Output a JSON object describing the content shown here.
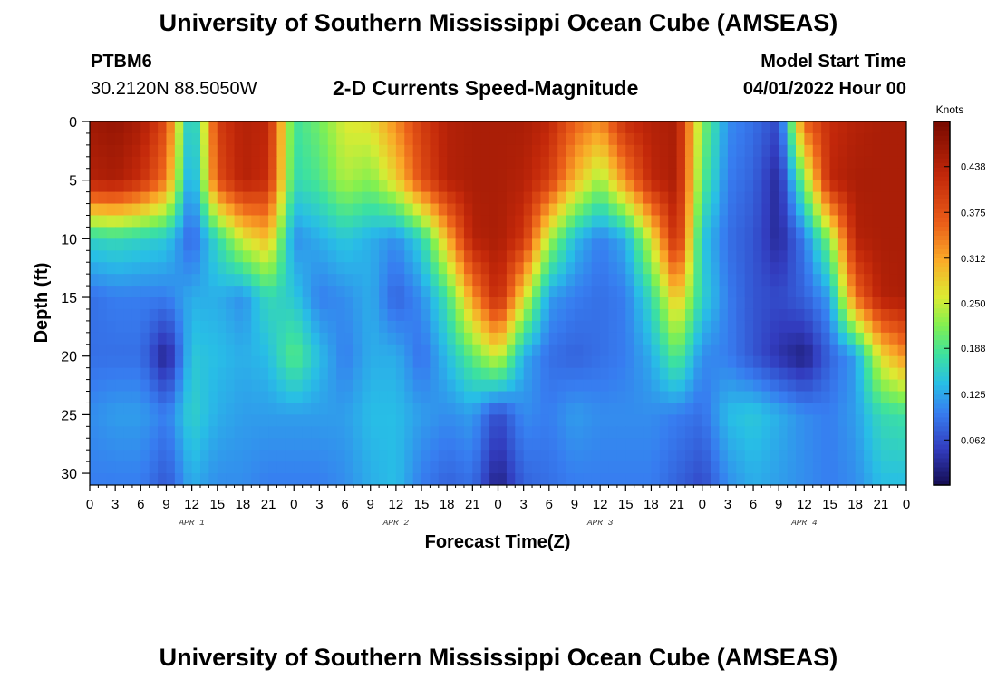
{
  "header": {
    "title": "University of Southern Mississippi Ocean Cube (AMSEAS)",
    "station": "PTBM6",
    "coordinates": "30.2120N  88.5050W",
    "plot_title": "2-D Currents Speed-Magnitude",
    "model_start_label": "Model Start Time",
    "model_start_value": "04/01/2022 Hour 00"
  },
  "footer": {
    "title": "University of Southern Mississippi Ocean Cube (AMSEAS)"
  },
  "chart_data": {
    "type": "heatmap",
    "title": "2-D Currents Speed-Magnitude",
    "xlabel": "Forecast Time(Z)",
    "ylabel": "Depth (ft)",
    "x_range_hours": [
      0,
      96
    ],
    "y_range_ft": [
      0,
      31
    ],
    "x_tick_labels": [
      "0",
      "3",
      "6",
      "9",
      "12",
      "15",
      "18",
      "21",
      "0",
      "3",
      "6",
      "9",
      "12",
      "15",
      "18",
      "21",
      "0",
      "3",
      "6",
      "9",
      "12",
      "15",
      "18",
      "21",
      "0",
      "3",
      "6",
      "9",
      "12",
      "15",
      "18",
      "21",
      "0"
    ],
    "y_ticks": [
      0,
      5,
      10,
      15,
      20,
      25,
      30
    ],
    "y_tick_labels": [
      "0",
      "5",
      "10",
      "15",
      "20",
      "25",
      "30"
    ],
    "day_labels": [
      {
        "label": "APR 1",
        "hour": 12
      },
      {
        "label": "APR 2",
        "hour": 36
      },
      {
        "label": "APR 3",
        "hour": 60
      },
      {
        "label": "APR 4",
        "hour": 84
      }
    ],
    "colorbar": {
      "unit": "Knots",
      "min": 0.0,
      "max": 0.5,
      "tick_values": [
        0.438,
        0.375,
        0.312,
        0.25,
        0.188,
        0.125,
        0.062
      ],
      "tick_labels": [
        "0.438",
        "0.375",
        "0.312",
        "0.250",
        "0.188",
        "0.125",
        "0.062"
      ]
    },
    "depths_ft": [
      0,
      5,
      10,
      15,
      20,
      25,
      31
    ],
    "hours": [
      0,
      3,
      6,
      9,
      12,
      15,
      18,
      21,
      24,
      27,
      30,
      33,
      36,
      39,
      42,
      45,
      48,
      51,
      54,
      57,
      60,
      63,
      66,
      69,
      72,
      75,
      78,
      81,
      84,
      87,
      90,
      93,
      96
    ],
    "speed_knots": [
      [
        0.46,
        0.47,
        0.45,
        0.38,
        0.12,
        0.4,
        0.44,
        0.43,
        0.18,
        0.21,
        0.26,
        0.27,
        0.33,
        0.4,
        0.44,
        0.45,
        0.45,
        0.45,
        0.43,
        0.36,
        0.33,
        0.42,
        0.44,
        0.45,
        0.22,
        0.11,
        0.09,
        0.06,
        0.36,
        0.42,
        0.44,
        0.45,
        0.45
      ],
      [
        0.44,
        0.45,
        0.42,
        0.34,
        0.1,
        0.38,
        0.44,
        0.42,
        0.17,
        0.19,
        0.24,
        0.22,
        0.28,
        0.38,
        0.44,
        0.45,
        0.45,
        0.44,
        0.4,
        0.3,
        0.23,
        0.33,
        0.43,
        0.45,
        0.2,
        0.1,
        0.08,
        0.03,
        0.22,
        0.43,
        0.45,
        0.45,
        0.45
      ],
      [
        0.16,
        0.17,
        0.16,
        0.15,
        0.08,
        0.17,
        0.26,
        0.3,
        0.11,
        0.13,
        0.15,
        0.13,
        0.11,
        0.16,
        0.3,
        0.44,
        0.45,
        0.41,
        0.24,
        0.14,
        0.1,
        0.13,
        0.26,
        0.43,
        0.15,
        0.09,
        0.07,
        0.03,
        0.1,
        0.22,
        0.44,
        0.45,
        0.45
      ],
      [
        0.09,
        0.1,
        0.1,
        0.1,
        0.13,
        0.13,
        0.11,
        0.17,
        0.15,
        0.1,
        0.11,
        0.13,
        0.08,
        0.11,
        0.18,
        0.32,
        0.43,
        0.27,
        0.12,
        0.1,
        0.09,
        0.1,
        0.17,
        0.3,
        0.16,
        0.1,
        0.07,
        0.06,
        0.08,
        0.12,
        0.35,
        0.44,
        0.45
      ],
      [
        0.09,
        0.09,
        0.09,
        0.02,
        0.15,
        0.14,
        0.13,
        0.14,
        0.2,
        0.14,
        0.1,
        0.13,
        0.13,
        0.09,
        0.14,
        0.2,
        0.26,
        0.13,
        0.09,
        0.08,
        0.09,
        0.1,
        0.13,
        0.2,
        0.11,
        0.1,
        0.07,
        0.04,
        0.02,
        0.08,
        0.12,
        0.27,
        0.33
      ],
      [
        0.11,
        0.12,
        0.12,
        0.1,
        0.16,
        0.13,
        0.12,
        0.12,
        0.12,
        0.12,
        0.12,
        0.14,
        0.14,
        0.12,
        0.11,
        0.12,
        0.06,
        0.11,
        0.1,
        0.12,
        0.11,
        0.11,
        0.11,
        0.1,
        0.09,
        0.14,
        0.15,
        0.13,
        0.11,
        0.1,
        0.12,
        0.17,
        0.18
      ],
      [
        0.1,
        0.1,
        0.1,
        0.07,
        0.13,
        0.11,
        0.11,
        0.1,
        0.1,
        0.1,
        0.11,
        0.13,
        0.14,
        0.1,
        0.08,
        0.09,
        0.02,
        0.08,
        0.09,
        0.1,
        0.1,
        0.1,
        0.1,
        0.08,
        0.06,
        0.11,
        0.13,
        0.12,
        0.11,
        0.1,
        0.11,
        0.14,
        0.14
      ]
    ]
  }
}
